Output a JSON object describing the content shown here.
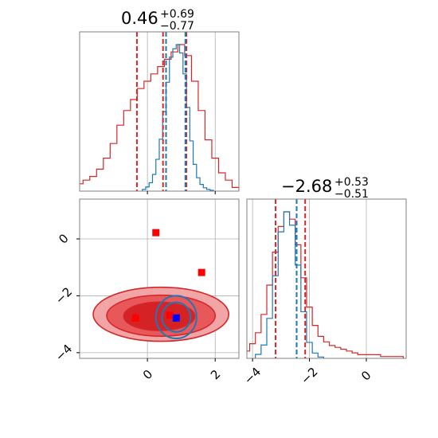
{
  "chart_data": {
    "type": "corner",
    "colors": {
      "red": "#d62728",
      "red_fill_light": "#f2a5a6",
      "red_fill_mid": "#e8585a",
      "red_fill_dark": "#d42225",
      "blue": "#1f77b4",
      "marker_red": "#ff0000",
      "marker_blue": "#0000ff",
      "grid": "#b0b0b0",
      "frame": "#808080"
    },
    "grid": true,
    "parameters": [
      {
        "title_value": "0.46",
        "title_plus": "+0.69",
        "title_minus": "−0.77",
        "range": [
          -2.0,
          2.7
        ],
        "ticks": [
          0,
          2
        ],
        "tick_labels": [
          "0",
          "2"
        ],
        "red_quantiles": [
          -0.31,
          0.46,
          1.15
        ],
        "blue_quantiles": [
          0.55,
          1.12
        ],
        "red_hist": {
          "centers": [
            -2.0,
            -1.8,
            -1.6,
            -1.4,
            -1.2,
            -1.0,
            -0.8,
            -0.6,
            -0.4,
            -0.2,
            0.0,
            0.2,
            0.4,
            0.6,
            0.8,
            1.0,
            1.2,
            1.4,
            1.6,
            1.8,
            2.0,
            2.2,
            2.4,
            2.6
          ],
          "values": [
            2,
            3,
            4,
            6,
            9,
            13,
            18,
            22,
            25,
            28,
            30,
            32,
            34,
            36,
            38,
            40,
            37,
            30,
            22,
            14,
            9,
            5,
            3,
            1
          ]
        },
        "blue_hist": {
          "centers": [
            -0.1,
            0.0,
            0.1,
            0.2,
            0.3,
            0.4,
            0.5,
            0.6,
            0.7,
            0.8,
            0.9,
            1.0,
            1.1,
            1.2,
            1.3,
            1.4,
            1.5,
            1.6,
            1.7,
            1.8,
            1.9
          ],
          "values": [
            2,
            5,
            10,
            20,
            38,
            62,
            95,
            130,
            160,
            170,
            175,
            165,
            140,
            100,
            60,
            32,
            16,
            8,
            4,
            2,
            1
          ]
        }
      },
      {
        "title_value": "−2.68",
        "title_plus": "+0.53",
        "title_minus": "−0.51",
        "range": [
          -4.2,
          1.4
        ],
        "ticks": [
          -4,
          -2,
          0
        ],
        "tick_labels": [
          "−4",
          "−2",
          "0"
        ],
        "red_quantiles": [
          -3.19,
          -2.15
        ],
        "blue_quantiles": [
          -2.45
        ],
        "red_hist": {
          "centers": [
            -4.2,
            -4.0,
            -3.8,
            -3.6,
            -3.4,
            -3.2,
            -3.0,
            -2.8,
            -2.6,
            -2.4,
            -2.2,
            -2.0,
            -1.8,
            -1.6,
            -1.4,
            -1.2,
            -1.0,
            -0.8,
            -0.6,
            -0.4,
            -0.2,
            0.0,
            0.2,
            0.4,
            0.6,
            0.8,
            1.0,
            1.2
          ],
          "values": [
            4,
            8,
            14,
            24,
            40,
            58,
            72,
            80,
            76,
            62,
            44,
            28,
            18,
            12,
            9,
            7,
            6,
            5,
            4,
            3,
            2,
            2,
            2,
            2,
            1,
            1,
            1,
            1
          ]
        },
        "blue_hist": {
          "centers": [
            -3.8,
            -3.6,
            -3.4,
            -3.2,
            -3.0,
            -2.8,
            -2.6,
            -2.4,
            -2.2,
            -2.0,
            -1.8,
            -1.6
          ],
          "values": [
            3,
            10,
            30,
            62,
            95,
            110,
            100,
            70,
            35,
            12,
            4,
            1
          ]
        }
      }
    ],
    "joint": {
      "red_points": [
        [
          0.25,
          0.22
        ],
        [
          1.6,
          -1.18
        ],
        [
          0.66,
          -2.68
        ],
        [
          -0.35,
          -2.78
        ]
      ],
      "blue_points": [
        [
          0.85,
          -2.78
        ]
      ],
      "red_contours": [
        {
          "cx": 0.4,
          "cy": -2.65,
          "rx": 2.0,
          "ry": 0.95
        },
        {
          "cx": 0.4,
          "cy": -2.7,
          "rx": 1.6,
          "ry": 0.72
        },
        {
          "cx": 0.35,
          "cy": -2.72,
          "rx": 1.05,
          "ry": 0.5
        }
      ],
      "blue_contours": [
        {
          "cx": 0.85,
          "cy": -2.75,
          "rx": 0.6,
          "ry": 0.75
        },
        {
          "cx": 0.85,
          "cy": -2.75,
          "rx": 0.42,
          "ry": 0.52
        }
      ]
    }
  }
}
